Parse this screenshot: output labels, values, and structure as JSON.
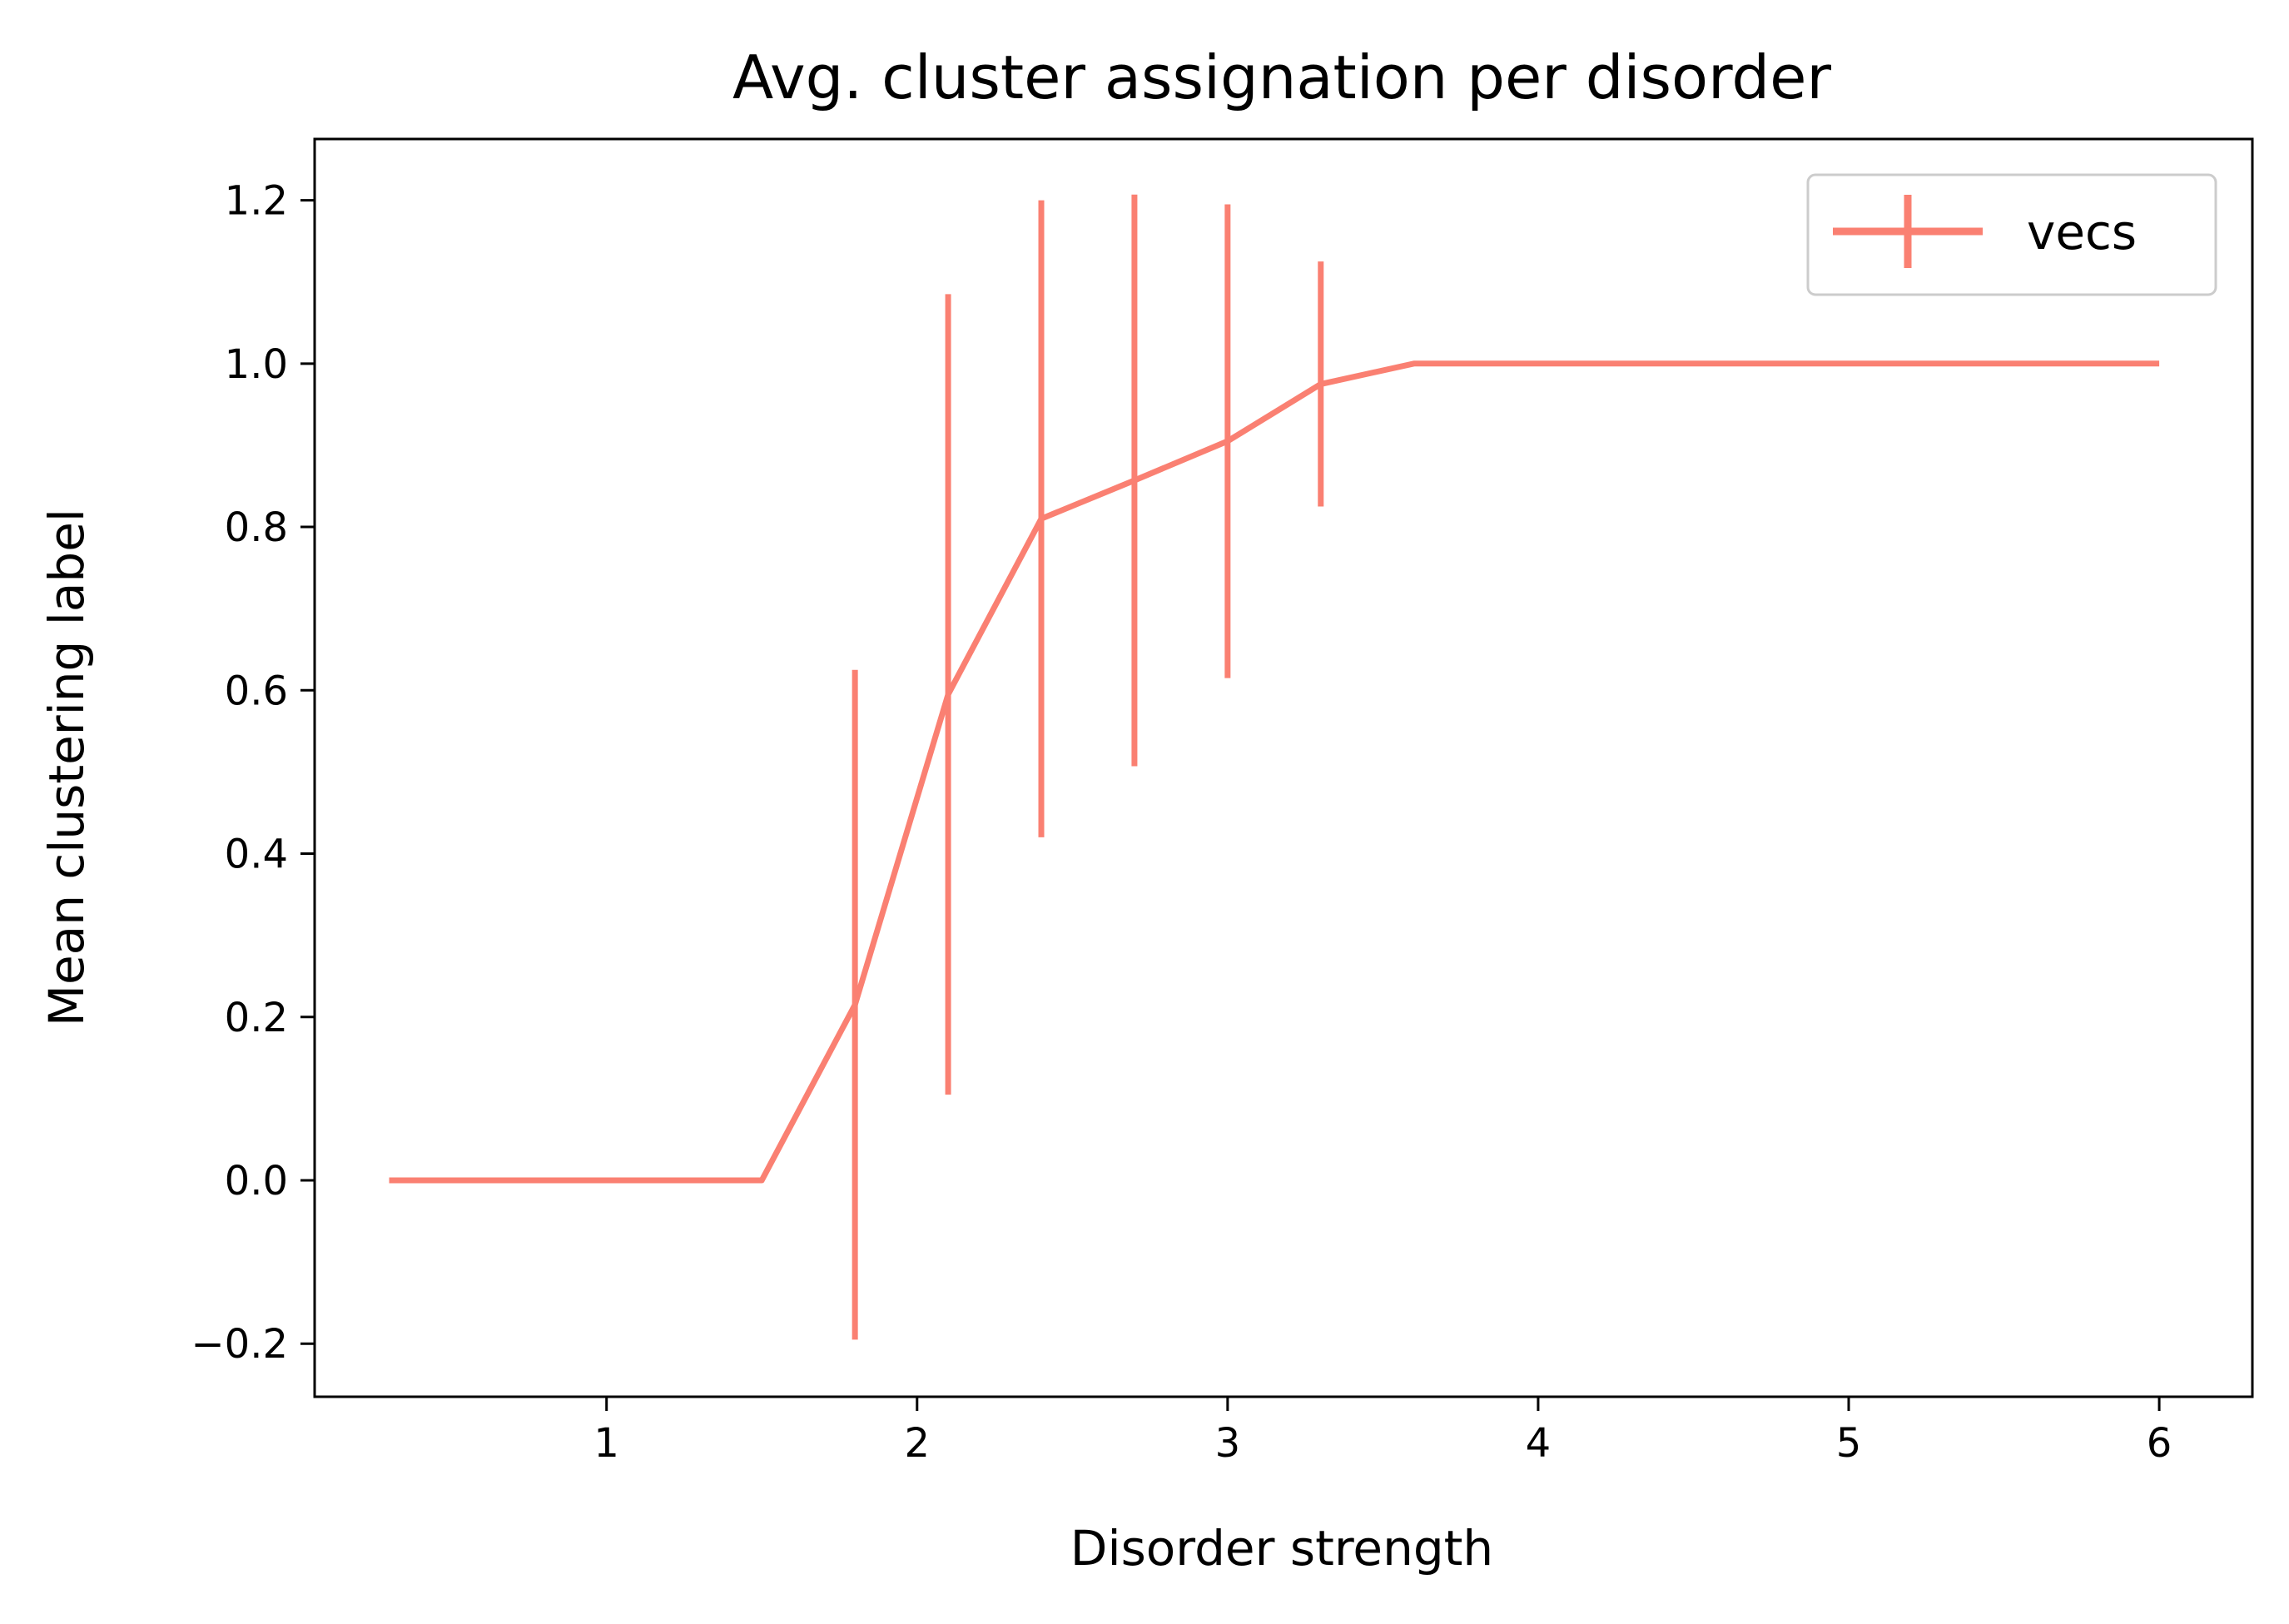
{
  "chart_data": {
    "type": "line",
    "title": "Avg. cluster assignation per disorder",
    "xlabel": "Disorder strength",
    "ylabel": "Mean clustering label",
    "xlim": [
      0.06,
      6.3
    ],
    "ylim": [
      -0.265,
      1.275
    ],
    "xticks": [
      1,
      2,
      3,
      4,
      5,
      6
    ],
    "xtick_labels": [
      "1",
      "2",
      "3",
      "4",
      "5",
      "6"
    ],
    "yticks": [
      -0.2,
      0.0,
      0.2,
      0.4,
      0.6,
      0.8,
      1.0,
      1.2
    ],
    "ytick_labels": [
      "−0.2",
      "0.0",
      "0.2",
      "0.4",
      "0.6",
      "0.8",
      "1.0",
      "1.2"
    ],
    "grid": false,
    "legend_position": "top-right",
    "series": [
      {
        "name": "vecs",
        "color": "#fa8072",
        "x": [
          0.3,
          0.6,
          0.9,
          1.2,
          1.5,
          1.8,
          2.1,
          2.4,
          2.7,
          3.0,
          3.3,
          3.6,
          3.9,
          4.2,
          4.5,
          4.8,
          5.1,
          5.4,
          5.7,
          6.0
        ],
        "y": [
          0.0,
          0.0,
          0.0,
          0.0,
          0.0,
          0.215,
          0.595,
          0.81,
          0.857,
          0.905,
          0.975,
          1.0,
          1.0,
          1.0,
          1.0,
          1.0,
          1.0,
          1.0,
          1.0,
          1.0
        ],
        "yerr": [
          0.0,
          0.0,
          0.0,
          0.0,
          0.0,
          0.41,
          0.49,
          0.39,
          0.35,
          0.29,
          0.15,
          0.0,
          0.0,
          0.0,
          0.0,
          0.0,
          0.0,
          0.0,
          0.0,
          0.0
        ]
      }
    ]
  }
}
